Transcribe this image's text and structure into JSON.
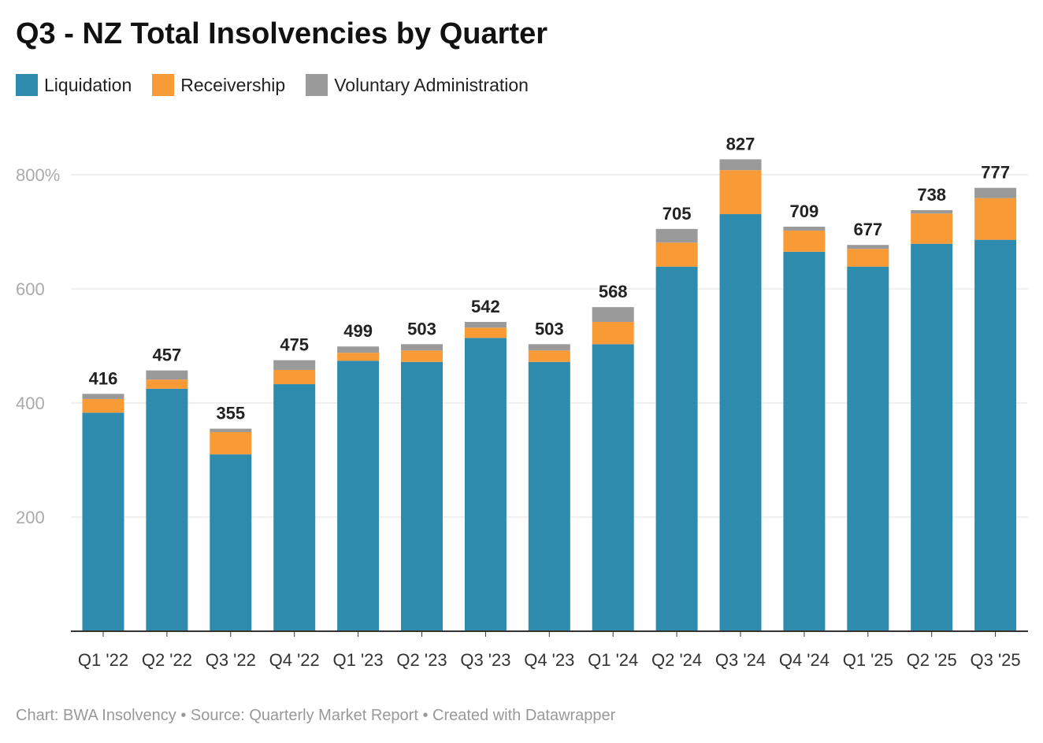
{
  "chart_data": {
    "type": "bar",
    "stacked": true,
    "title": "Q3 - NZ Total Insolvencies by Quarter",
    "categories": [
      "Q1 '22",
      "Q2 '22",
      "Q3 '22",
      "Q4 '22",
      "Q1 '23",
      "Q2 '23",
      "Q3 '23",
      "Q4 '23",
      "Q1 '24",
      "Q2 '24",
      "Q3 '24",
      "Q4 '24",
      "Q1 '25",
      "Q2 '25",
      "Q3 '25"
    ],
    "series": [
      {
        "name": "Liquidation",
        "color": "#2e8bad",
        "values": [
          383,
          425,
          310,
          433,
          474,
          472,
          514,
          472,
          503,
          639,
          731,
          665,
          639,
          679,
          686
        ]
      },
      {
        "name": "Receivership",
        "color": "#f89a36",
        "values": [
          24,
          16,
          39,
          25,
          14,
          20,
          18,
          20,
          39,
          42,
          77,
          37,
          31,
          53,
          73
        ]
      },
      {
        "name": "Voluntary Administration",
        "color": "#9a9a9a",
        "values": [
          9,
          16,
          6,
          17,
          11,
          11,
          10,
          11,
          26,
          24,
          19,
          7,
          7,
          6,
          18
        ]
      }
    ],
    "totals": [
      "416",
      "457",
      "355",
      "475",
      "499",
      "503",
      "542",
      "503",
      "568",
      "705",
      "827",
      "709",
      "677",
      "738",
      "777"
    ],
    "yticks": [
      200,
      400,
      600,
      800
    ],
    "ytick_labels": [
      "200",
      "400",
      "600",
      "800%"
    ],
    "ylim": [
      0,
      850
    ],
    "grid": true,
    "legend_placement": "top-left",
    "xlabel": "",
    "ylabel": ""
  },
  "footer": "Chart: BWA Insolvency • Source: Quarterly Market Report • Created with Datawrapper"
}
